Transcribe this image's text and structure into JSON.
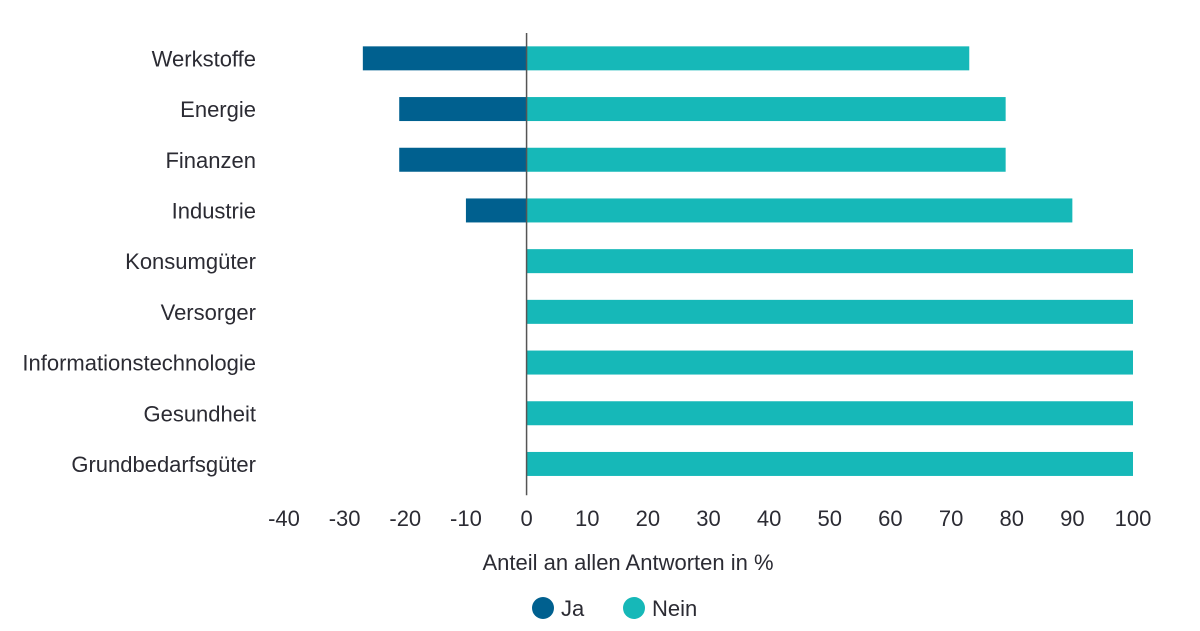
{
  "chart_data": {
    "type": "bar",
    "orientation": "horizontal",
    "stacked": "diverging",
    "categories": [
      "Werkstoffe",
      "Energie",
      "Finanzen",
      "Industrie",
      "Konsumgüter",
      "Versorger",
      "Informationstechnologie",
      "Gesundheit",
      "Grundbedarfsgüter"
    ],
    "series": [
      {
        "name": "Ja",
        "color": "#00608f",
        "values": [
          -27,
          -21,
          -21,
          -10,
          0,
          0,
          0,
          0,
          0
        ]
      },
      {
        "name": "Nein",
        "color": "#16b8b8",
        "values": [
          73,
          79,
          79,
          90,
          100,
          100,
          100,
          100,
          100
        ]
      }
    ],
    "xlabel": "Anteil an allen Antworten in %",
    "xlim": [
      -40,
      100
    ],
    "xticks": [
      "-40",
      "-30",
      "-20",
      "-10",
      "0",
      "10",
      "20",
      "30",
      "40",
      "50",
      "60",
      "70",
      "80",
      "90",
      "100"
    ],
    "grid": false,
    "legend": "bottom-center"
  }
}
